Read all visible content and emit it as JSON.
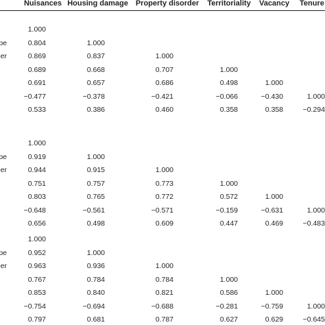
{
  "headers": [
    "Nuisances",
    "Housing damage",
    "Property disorder",
    "Territoriality",
    "Vacancy",
    "Tenure"
  ],
  "blocks": [
    {
      "row_labels": [
        "",
        "pe",
        "er",
        "",
        "",
        "",
        ""
      ],
      "rows": [
        [
          "1.000",
          "",
          "",
          "",
          "",
          ""
        ],
        [
          "0.804",
          "1.000",
          "",
          "",
          "",
          ""
        ],
        [
          "0.869",
          "0.837",
          "1.000",
          "",
          "",
          ""
        ],
        [
          "0.689",
          "0.668",
          "0.707",
          "1.000",
          "",
          ""
        ],
        [
          "0.691",
          "0.657",
          "0.686",
          "0.498",
          "1.000",
          ""
        ],
        [
          "−0.477",
          "−0.378",
          "−0.421",
          "−0.066",
          "−0.430",
          "1.000"
        ],
        [
          "0.533",
          "0.386",
          "0.460",
          "0.358",
          "0.358",
          "−0.294"
        ]
      ]
    },
    {
      "row_labels": [
        "",
        "pe",
        "er",
        "",
        "",
        "",
        ""
      ],
      "rows": [
        [
          "1.000",
          "",
          "",
          "",
          "",
          ""
        ],
        [
          "0.919",
          "1.000",
          "",
          "",
          "",
          ""
        ],
        [
          "0.944",
          "0.915",
          "1.000",
          "",
          "",
          ""
        ],
        [
          "0.751",
          "0.757",
          "0.773",
          "1.000",
          "",
          ""
        ],
        [
          "0.803",
          "0.765",
          "0.772",
          "0.572",
          "1.000",
          ""
        ],
        [
          "−0.648",
          "−0.561",
          "−0.571",
          "−0.159",
          "−0.631",
          "1.000"
        ],
        [
          "0.656",
          "0.498",
          "0.609",
          "0.447",
          "0.469",
          "−0.483"
        ]
      ]
    },
    {
      "row_labels": [
        "",
        "pe",
        "er",
        "",
        "",
        "",
        ""
      ],
      "rows": [
        [
          "1.000",
          "",
          "",
          "",
          "",
          ""
        ],
        [
          "0.952",
          "1.000",
          "",
          "",
          "",
          ""
        ],
        [
          "0.963",
          "0.936",
          "1.000",
          "",
          "",
          ""
        ],
        [
          "0.767",
          "0.784",
          "0.784",
          "1.000",
          "",
          ""
        ],
        [
          "0.853",
          "0.840",
          "0.821",
          "0.586",
          "1.000",
          ""
        ],
        [
          "−0.754",
          "−0.694",
          "−0.688",
          "−0.281",
          "−0.759",
          "1.000"
        ],
        [
          "0.797",
          "0.681",
          "0.787",
          "0.627",
          "0.629",
          "−0.645"
        ]
      ]
    }
  ]
}
